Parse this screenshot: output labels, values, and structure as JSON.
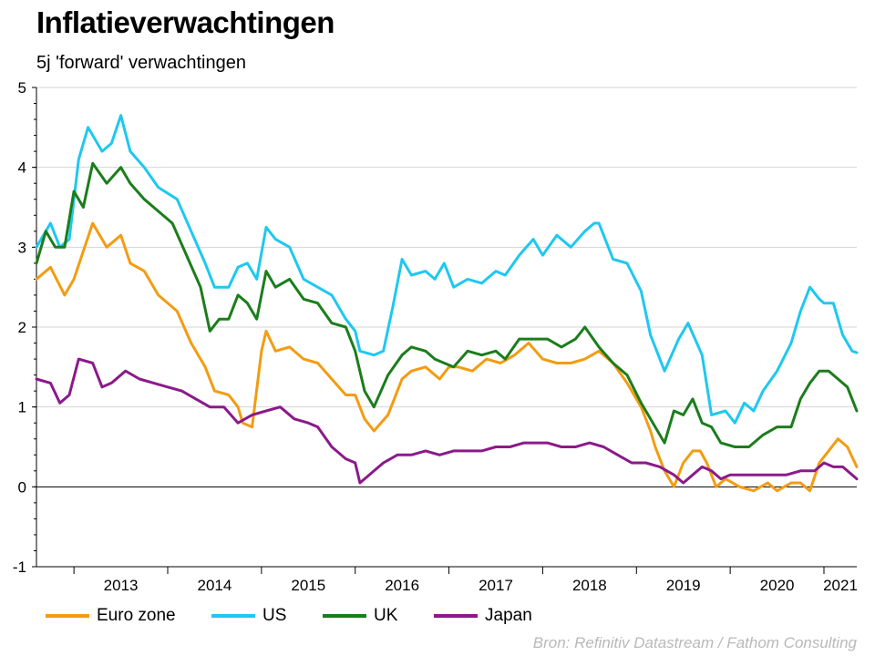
{
  "chart_data": {
    "type": "line",
    "title": "Inflatieverwachtingen",
    "subtitle": "5j 'forward' verwachtingen",
    "ylabel": "",
    "xlabel": "",
    "ylim": [
      -1,
      5
    ],
    "yticks": [
      "5",
      "4",
      "3",
      "2",
      "1",
      "0",
      "-1"
    ],
    "xlim": [
      2012.6,
      2021.35
    ],
    "xticks": [
      "2013",
      "2014",
      "2015",
      "2016",
      "2017",
      "2018",
      "2019",
      "2020",
      "2021"
    ],
    "grid": true,
    "source": "Bron: Refinitiv Datastream / Fathom Consulting",
    "series": [
      {
        "name": "Euro zone",
        "color": "#f39c12",
        "x": [
          2012.6,
          2012.75,
          2012.9,
          2013.0,
          2013.1,
          2013.2,
          2013.35,
          2013.5,
          2013.6,
          2013.75,
          2013.9,
          2014.1,
          2014.25,
          2014.4,
          2014.5,
          2014.65,
          2014.75,
          2014.8,
          2014.9,
          2015.0,
          2015.05,
          2015.15,
          2015.3,
          2015.45,
          2015.6,
          2015.75,
          2015.9,
          2016.0,
          2016.1,
          2016.2,
          2016.35,
          2016.5,
          2016.6,
          2016.75,
          2016.9,
          2017.0,
          2017.1,
          2017.25,
          2017.4,
          2017.55,
          2017.7,
          2017.85,
          2018.0,
          2018.15,
          2018.3,
          2018.45,
          2018.6,
          2018.75,
          2018.9,
          2019.05,
          2019.15,
          2019.2,
          2019.3,
          2019.4,
          2019.5,
          2019.6,
          2019.68,
          2019.75,
          2019.85,
          2019.95,
          2020.1,
          2020.25,
          2020.4,
          2020.5,
          2020.65,
          2020.75,
          2020.85,
          2020.95,
          2021.05,
          2021.15,
          2021.25,
          2021.35
        ],
        "values": [
          2.6,
          2.75,
          2.4,
          2.6,
          2.95,
          3.3,
          3.0,
          3.15,
          2.8,
          2.7,
          2.4,
          2.2,
          1.8,
          1.5,
          1.2,
          1.15,
          1.0,
          0.8,
          0.75,
          1.7,
          1.95,
          1.7,
          1.75,
          1.6,
          1.55,
          1.35,
          1.15,
          1.15,
          0.85,
          0.7,
          0.9,
          1.35,
          1.45,
          1.5,
          1.35,
          1.5,
          1.5,
          1.45,
          1.6,
          1.55,
          1.65,
          1.8,
          1.6,
          1.55,
          1.55,
          1.6,
          1.7,
          1.55,
          1.3,
          1.0,
          0.7,
          0.5,
          0.2,
          0.0,
          0.3,
          0.45,
          0.45,
          0.3,
          0.0,
          0.1,
          0.0,
          -0.05,
          0.05,
          -0.05,
          0.05,
          0.05,
          -0.05,
          0.3,
          0.45,
          0.6,
          0.5,
          0.25
        ]
      },
      {
        "name": "US",
        "color": "#1ec8f0",
        "x": [
          2012.6,
          2012.75,
          2012.85,
          2012.95,
          2013.05,
          2013.15,
          2013.3,
          2013.4,
          2013.5,
          2013.6,
          2013.75,
          2013.9,
          2014.1,
          2014.25,
          2014.4,
          2014.5,
          2014.65,
          2014.75,
          2014.85,
          2014.95,
          2015.05,
          2015.15,
          2015.3,
          2015.45,
          2015.6,
          2015.75,
          2015.9,
          2016.0,
          2016.05,
          2016.2,
          2016.3,
          2016.4,
          2016.5,
          2016.6,
          2016.75,
          2016.85,
          2016.95,
          2017.05,
          2017.2,
          2017.35,
          2017.5,
          2017.6,
          2017.75,
          2017.9,
          2018.0,
          2018.15,
          2018.3,
          2018.45,
          2018.55,
          2018.6,
          2018.75,
          2018.9,
          2019.05,
          2019.15,
          2019.3,
          2019.45,
          2019.55,
          2019.7,
          2019.8,
          2019.95,
          2020.05,
          2020.15,
          2020.25,
          2020.35,
          2020.5,
          2020.65,
          2020.75,
          2020.85,
          2020.95,
          2021.0,
          2021.1,
          2021.2,
          2021.3,
          2021.35
        ],
        "values": [
          3.0,
          3.3,
          3.0,
          3.1,
          4.1,
          4.5,
          4.2,
          4.3,
          4.65,
          4.2,
          4.0,
          3.75,
          3.6,
          3.2,
          2.8,
          2.5,
          2.5,
          2.75,
          2.8,
          2.6,
          3.25,
          3.1,
          3.0,
          2.6,
          2.5,
          2.4,
          2.1,
          1.95,
          1.7,
          1.65,
          1.7,
          2.25,
          2.85,
          2.65,
          2.7,
          2.6,
          2.8,
          2.5,
          2.6,
          2.55,
          2.7,
          2.65,
          2.9,
          3.1,
          2.9,
          3.15,
          3.0,
          3.2,
          3.3,
          3.3,
          2.85,
          2.8,
          2.45,
          1.9,
          1.45,
          1.85,
          2.05,
          1.65,
          0.9,
          0.95,
          0.8,
          1.05,
          0.95,
          1.2,
          1.45,
          1.8,
          2.2,
          2.5,
          2.35,
          2.3,
          2.3,
          1.9,
          1.7,
          1.68
        ]
      },
      {
        "name": "UK",
        "color": "#1b7d1b",
        "x": [
          2012.6,
          2012.7,
          2012.8,
          2012.9,
          2013.0,
          2013.1,
          2013.2,
          2013.35,
          2013.5,
          2013.6,
          2013.75,
          2013.9,
          2014.05,
          2014.2,
          2014.35,
          2014.45,
          2014.55,
          2014.65,
          2014.75,
          2014.85,
          2014.95,
          2015.05,
          2015.15,
          2015.3,
          2015.45,
          2015.6,
          2015.75,
          2015.9,
          2016.0,
          2016.1,
          2016.2,
          2016.35,
          2016.5,
          2016.6,
          2016.75,
          2016.85,
          2016.95,
          2017.05,
          2017.2,
          2017.35,
          2017.5,
          2017.6,
          2017.75,
          2017.9,
          2018.05,
          2018.2,
          2018.35,
          2018.45,
          2018.6,
          2018.75,
          2018.9,
          2019.05,
          2019.15,
          2019.3,
          2019.4,
          2019.5,
          2019.6,
          2019.7,
          2019.8,
          2019.9,
          2020.05,
          2020.2,
          2020.35,
          2020.5,
          2020.65,
          2020.75,
          2020.85,
          2020.95,
          2021.05,
          2021.15,
          2021.25,
          2021.35
        ],
        "values": [
          2.8,
          3.2,
          3.0,
          3.0,
          3.7,
          3.5,
          4.05,
          3.8,
          4.0,
          3.8,
          3.6,
          3.45,
          3.3,
          2.9,
          2.5,
          1.95,
          2.1,
          2.1,
          2.4,
          2.3,
          2.1,
          2.7,
          2.5,
          2.6,
          2.35,
          2.3,
          2.05,
          2.0,
          1.7,
          1.2,
          1.0,
          1.4,
          1.65,
          1.75,
          1.7,
          1.6,
          1.55,
          1.5,
          1.7,
          1.65,
          1.7,
          1.6,
          1.85,
          1.85,
          1.85,
          1.75,
          1.85,
          2.0,
          1.75,
          1.55,
          1.4,
          1.05,
          0.85,
          0.55,
          0.95,
          0.9,
          1.1,
          0.8,
          0.75,
          0.55,
          0.5,
          0.5,
          0.65,
          0.75,
          0.75,
          1.1,
          1.3,
          1.45,
          1.45,
          1.35,
          1.25,
          0.95
        ]
      },
      {
        "name": "Japan",
        "color": "#8b1a89",
        "x": [
          2012.6,
          2012.75,
          2012.85,
          2012.95,
          2013.05,
          2013.2,
          2013.3,
          2013.4,
          2013.55,
          2013.7,
          2013.85,
          2014.0,
          2014.15,
          2014.3,
          2014.45,
          2014.6,
          2014.75,
          2014.9,
          2015.05,
          2015.2,
          2015.35,
          2015.5,
          2015.6,
          2015.75,
          2015.9,
          2016.0,
          2016.05,
          2016.15,
          2016.3,
          2016.45,
          2016.6,
          2016.75,
          2016.9,
          2017.05,
          2017.2,
          2017.35,
          2017.5,
          2017.65,
          2017.8,
          2017.9,
          2018.05,
          2018.2,
          2018.35,
          2018.5,
          2018.65,
          2018.8,
          2018.95,
          2019.1,
          2019.25,
          2019.4,
          2019.5,
          2019.6,
          2019.7,
          2019.8,
          2019.9,
          2020.0,
          2020.2,
          2020.35,
          2020.5,
          2020.6,
          2020.75,
          2020.9,
          2021.0,
          2021.1,
          2021.2,
          2021.3,
          2021.35
        ],
        "values": [
          1.35,
          1.3,
          1.05,
          1.15,
          1.6,
          1.55,
          1.25,
          1.3,
          1.45,
          1.35,
          1.3,
          1.25,
          1.2,
          1.1,
          1.0,
          1.0,
          0.8,
          0.9,
          0.95,
          1.0,
          0.85,
          0.8,
          0.75,
          0.5,
          0.35,
          0.3,
          0.05,
          0.15,
          0.3,
          0.4,
          0.4,
          0.45,
          0.4,
          0.45,
          0.45,
          0.45,
          0.5,
          0.5,
          0.55,
          0.55,
          0.55,
          0.5,
          0.5,
          0.55,
          0.5,
          0.4,
          0.3,
          0.3,
          0.25,
          0.15,
          0.05,
          0.15,
          0.25,
          0.2,
          0.1,
          0.15,
          0.15,
          0.15,
          0.15,
          0.15,
          0.2,
          0.2,
          0.3,
          0.25,
          0.25,
          0.15,
          0.1
        ]
      }
    ]
  }
}
